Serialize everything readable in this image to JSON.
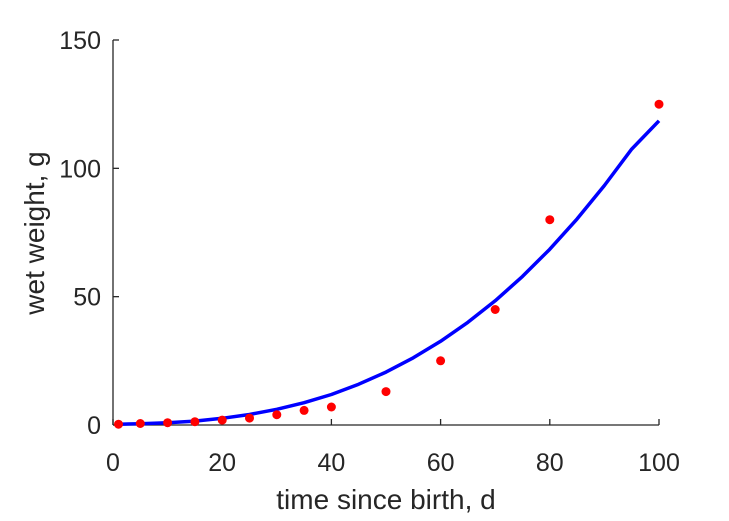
{
  "chart_data": {
    "type": "scatter",
    "title": "",
    "xlabel": "time since birth, d",
    "ylabel": "wet weight, g",
    "xlim": [
      0,
      100
    ],
    "ylim": [
      0,
      150
    ],
    "xticks": [
      0,
      20,
      40,
      60,
      80,
      100
    ],
    "yticks": [
      0,
      50,
      100,
      150
    ],
    "grid": false,
    "box": "off",
    "series": [
      {
        "type": "scatter",
        "marker": "filled-circle",
        "color": "#ff0000",
        "x": [
          1,
          5,
          10,
          15,
          20,
          25,
          30,
          35,
          40,
          50,
          60,
          70,
          80,
          100
        ],
        "y": [
          0.3,
          0.6,
          0.9,
          1.3,
          1.9,
          2.7,
          4.0,
          5.7,
          7.0,
          13.0,
          25.0,
          45.0,
          80.0,
          125.0
        ]
      },
      {
        "type": "line",
        "color": "#0000ff",
        "x": [
          1,
          5,
          10,
          15,
          20,
          25,
          30,
          35,
          40,
          45,
          50,
          55,
          60,
          65,
          70,
          75,
          80,
          85,
          90,
          95,
          100
        ],
        "y": [
          0.3,
          0.5,
          0.9,
          1.5,
          2.6,
          4.1,
          6.1,
          8.7,
          11.9,
          15.9,
          20.6,
          26.2,
          32.6,
          40.0,
          48.4,
          57.9,
          68.5,
          80.3,
          93.3,
          107.5,
          118.5
        ]
      }
    ]
  }
}
